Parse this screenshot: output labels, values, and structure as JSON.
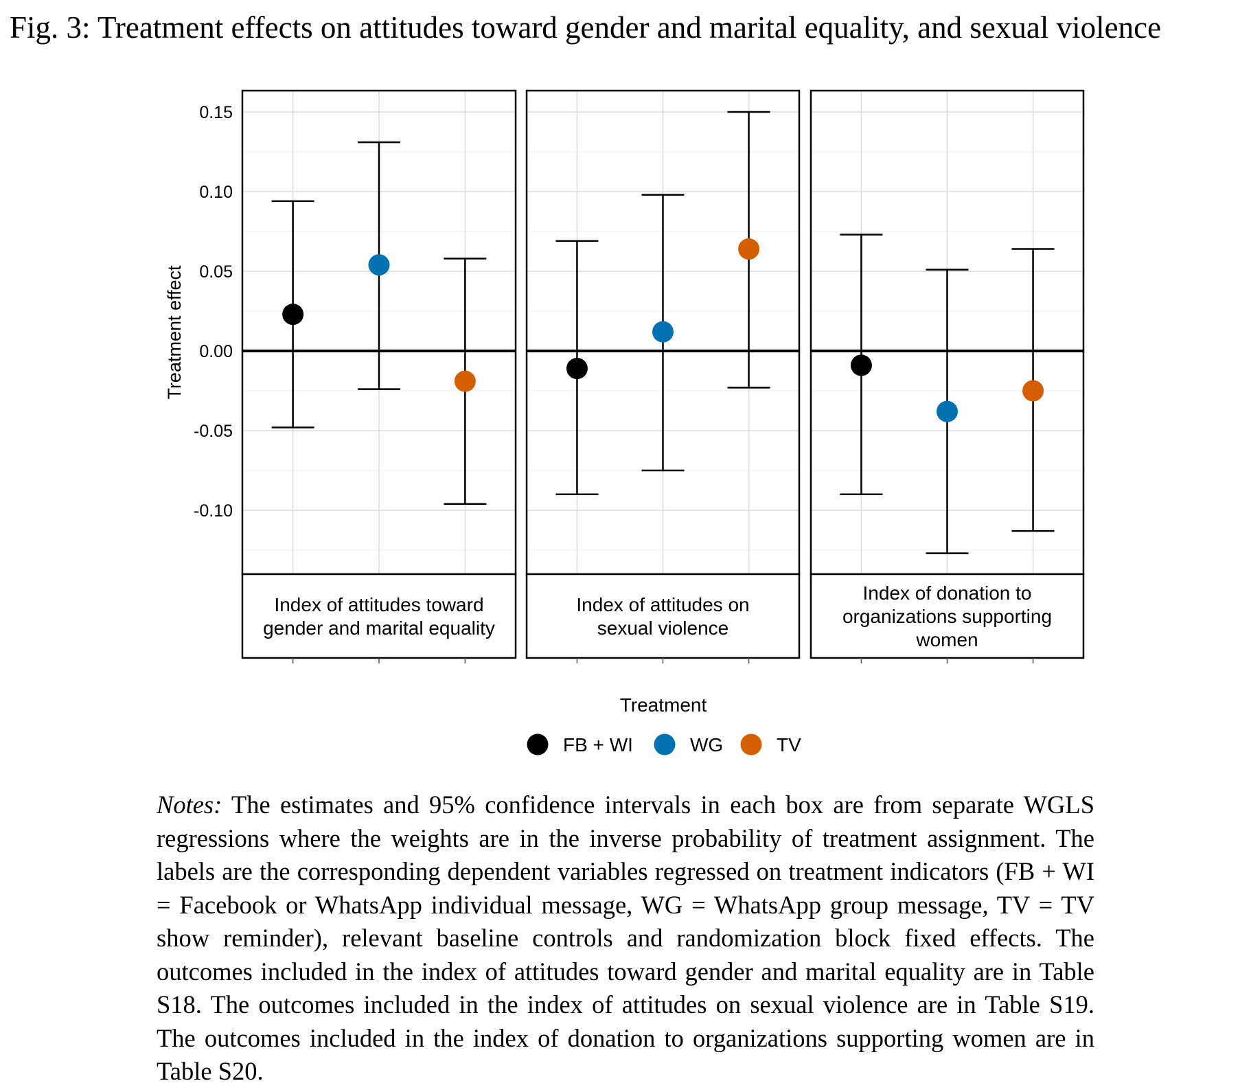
{
  "figure": {
    "title": "Fig. 3: Treatment effects on attitudes toward gender and marital equality, and sexual violence"
  },
  "chart_data": {
    "type": "scatter",
    "subtype": "point-range, faceted",
    "ylabel": "Treatment effect",
    "ylim": [
      -0.14,
      0.163
    ],
    "yticks": [
      "0.15",
      "0.10",
      "0.05",
      "0.00",
      "-0.05",
      "-0.10"
    ],
    "ytick_values": [
      0.15,
      0.1,
      0.05,
      0.0,
      -0.05,
      -0.1
    ],
    "reference_line": 0,
    "grid": true,
    "legend": {
      "title": "Treatment",
      "position": "bottom",
      "entries": [
        {
          "label": "FB + WI",
          "color": "#000000"
        },
        {
          "label": "WG",
          "color": "#0072b2"
        },
        {
          "label": "TV",
          "color": "#d55e00"
        }
      ]
    },
    "categories": [
      "FB + WI",
      "WG",
      "TV"
    ],
    "panels": [
      {
        "label_lines": [
          "Index of attitudes toward",
          "gender and marital equality"
        ],
        "points": [
          {
            "treatment": "FB + WI",
            "estimate": 0.023,
            "ci_low": -0.048,
            "ci_high": 0.094
          },
          {
            "treatment": "WG",
            "estimate": 0.054,
            "ci_low": -0.024,
            "ci_high": 0.131
          },
          {
            "treatment": "TV",
            "estimate": -0.019,
            "ci_low": -0.096,
            "ci_high": 0.058
          }
        ]
      },
      {
        "label_lines": [
          "Index of attitudes on",
          "sexual violence"
        ],
        "points": [
          {
            "treatment": "FB + WI",
            "estimate": -0.011,
            "ci_low": -0.09,
            "ci_high": 0.069
          },
          {
            "treatment": "WG",
            "estimate": 0.012,
            "ci_low": -0.075,
            "ci_high": 0.098
          },
          {
            "treatment": "TV",
            "estimate": 0.064,
            "ci_low": -0.023,
            "ci_high": 0.15
          }
        ]
      },
      {
        "label_lines": [
          "Index of donation to",
          "organizations supporting",
          "women"
        ],
        "points": [
          {
            "treatment": "FB + WI",
            "estimate": -0.009,
            "ci_low": -0.09,
            "ci_high": 0.073
          },
          {
            "treatment": "WG",
            "estimate": -0.038,
            "ci_low": -0.127,
            "ci_high": 0.051
          },
          {
            "treatment": "TV",
            "estimate": -0.025,
            "ci_low": -0.113,
            "ci_high": 0.064
          }
        ]
      }
    ]
  },
  "notes": {
    "lead": "Notes:",
    "text": "The estimates and 95% confidence intervals in each box are from separate WGLS regressions where the weights are in the inverse probability of treatment assignment. The labels are the corresponding dependent variables regressed on treatment indicators (FB + WI = Facebook or WhatsApp individual message, WG = WhatsApp group message, TV = TV show reminder), relevant baseline controls and randomization block fixed effects. The outcomes included in the index of attitudes toward gender and marital equality are in Table S18. The outcomes included in the index of attitudes on sexual violence are in Table S19. The outcomes included in the index of donation to organizations supporting women are in Table S20."
  }
}
